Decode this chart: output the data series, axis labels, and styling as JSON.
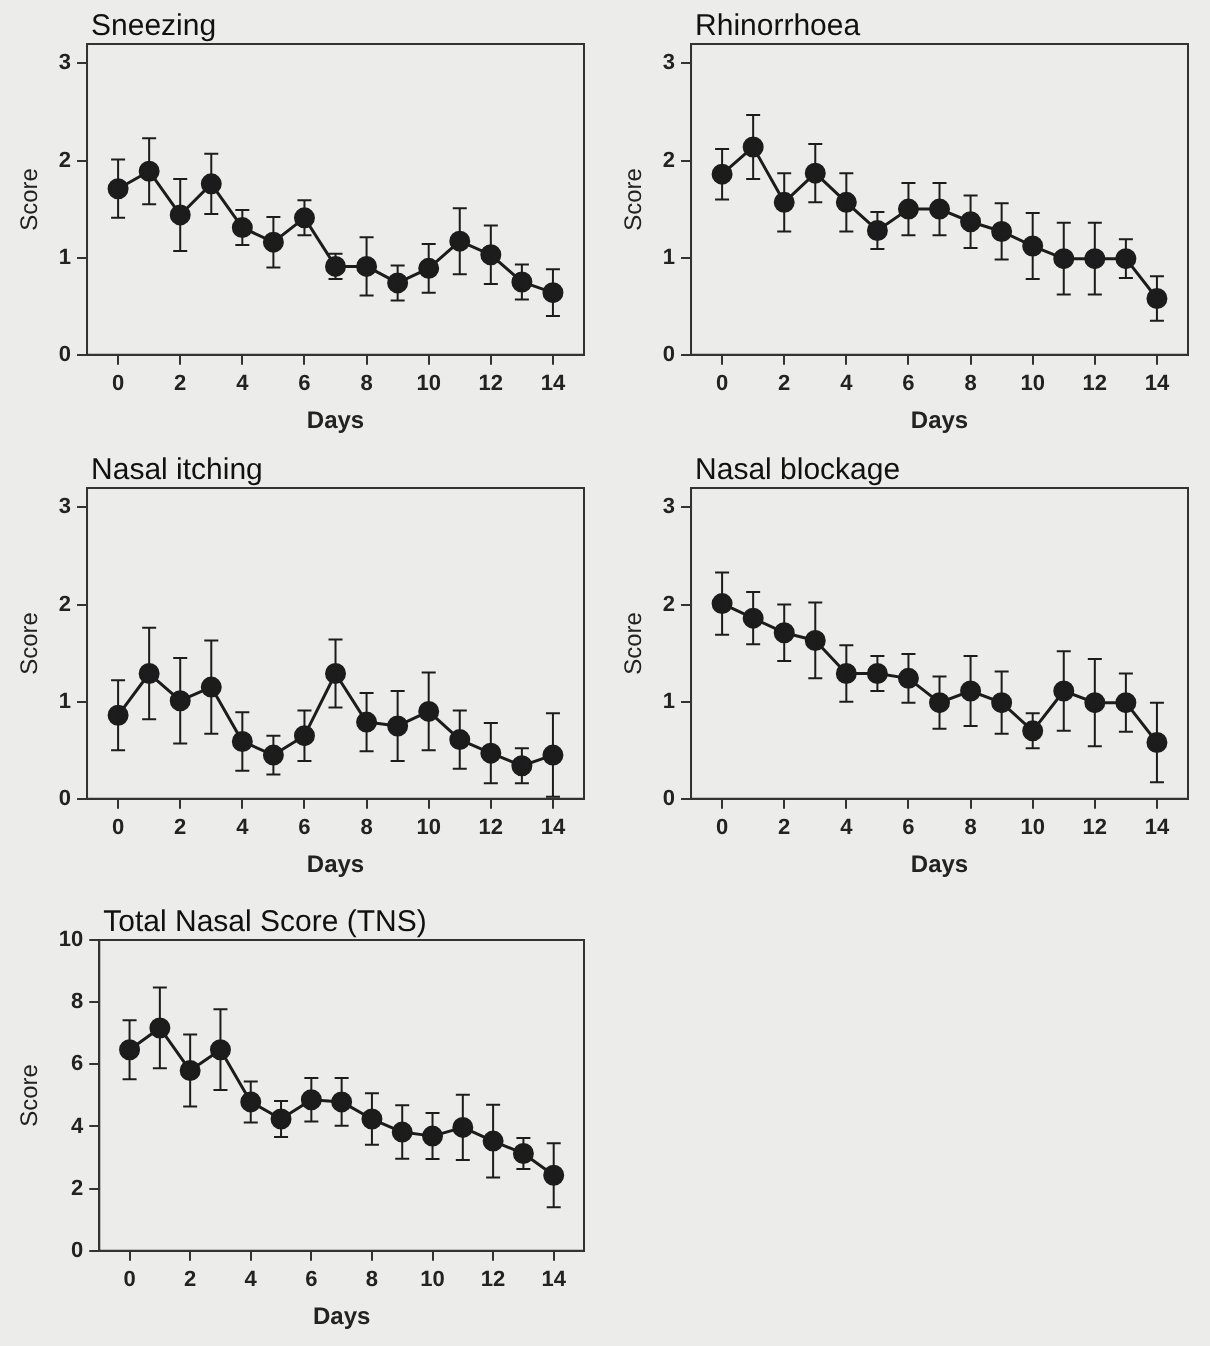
{
  "chart_data": [
    {
      "type": "line",
      "title": "Sneezing",
      "xlabel": "Days",
      "ylabel": "Score",
      "x": [
        0,
        1,
        2,
        3,
        4,
        5,
        6,
        7,
        8,
        9,
        10,
        11,
        12,
        13,
        14
      ],
      "xlim": [
        -1,
        15
      ],
      "xticks": [
        0,
        2,
        4,
        6,
        8,
        10,
        12,
        14
      ],
      "ylim": [
        0,
        3.2
      ],
      "yticks": [
        0,
        1,
        2,
        3
      ],
      "marker": "circle",
      "grid": false,
      "legend": false,
      "color": "#1c1c1c",
      "values": [
        1.71,
        1.89,
        1.44,
        1.76,
        1.31,
        1.16,
        1.41,
        0.91,
        0.91,
        0.74,
        0.89,
        1.17,
        1.03,
        0.75,
        0.64
      ],
      "errors": [
        0.3,
        0.34,
        0.37,
        0.31,
        0.18,
        0.26,
        0.18,
        0.13,
        0.3,
        0.18,
        0.25,
        0.34,
        0.3,
        0.18,
        0.24
      ]
    },
    {
      "type": "line",
      "title": "Rhinorrhoea",
      "xlabel": "Days",
      "ylabel": "Score",
      "x": [
        0,
        1,
        2,
        3,
        4,
        5,
        6,
        7,
        8,
        9,
        10,
        11,
        12,
        13,
        14
      ],
      "xlim": [
        -1,
        15
      ],
      "xticks": [
        0,
        2,
        4,
        6,
        8,
        10,
        12,
        14
      ],
      "ylim": [
        0,
        3.2
      ],
      "yticks": [
        0,
        1,
        2,
        3
      ],
      "marker": "circle",
      "grid": false,
      "legend": false,
      "color": "#1c1c1c",
      "values": [
        1.86,
        2.14,
        1.57,
        1.87,
        1.57,
        1.28,
        1.5,
        1.5,
        1.37,
        1.27,
        1.12,
        0.99,
        0.99,
        0.99,
        0.58
      ],
      "errors": [
        0.26,
        0.33,
        0.3,
        0.3,
        0.3,
        0.19,
        0.27,
        0.27,
        0.27,
        0.29,
        0.34,
        0.37,
        0.37,
        0.2,
        0.23
      ]
    },
    {
      "type": "line",
      "title": "Nasal itching",
      "xlabel": "Days",
      "ylabel": "Score",
      "x": [
        0,
        1,
        2,
        3,
        4,
        5,
        6,
        7,
        8,
        9,
        10,
        11,
        12,
        13,
        14
      ],
      "xlim": [
        -1,
        15
      ],
      "xticks": [
        0,
        2,
        4,
        6,
        8,
        10,
        12,
        14
      ],
      "ylim": [
        0,
        3.2
      ],
      "yticks": [
        0,
        1,
        2,
        3
      ],
      "marker": "circle",
      "grid": false,
      "legend": false,
      "color": "#1c1c1c",
      "values": [
        0.86,
        1.29,
        1.01,
        1.15,
        0.59,
        0.45,
        0.65,
        1.29,
        0.79,
        0.75,
        0.9,
        0.61,
        0.47,
        0.34,
        0.45
      ],
      "errors": [
        0.36,
        0.47,
        0.44,
        0.48,
        0.3,
        0.2,
        0.26,
        0.35,
        0.3,
        0.36,
        0.4,
        0.3,
        0.31,
        0.18,
        0.43
      ]
    },
    {
      "type": "line",
      "title": "Nasal blockage",
      "xlabel": "Days",
      "ylabel": "Score",
      "x": [
        0,
        1,
        2,
        3,
        4,
        5,
        6,
        7,
        8,
        9,
        10,
        11,
        12,
        13,
        14
      ],
      "xlim": [
        -1,
        15
      ],
      "xticks": [
        0,
        2,
        4,
        6,
        8,
        10,
        12,
        14
      ],
      "ylim": [
        0,
        3.2
      ],
      "yticks": [
        0,
        1,
        2,
        3
      ],
      "marker": "circle",
      "grid": false,
      "legend": false,
      "color": "#1c1c1c",
      "values": [
        2.01,
        1.86,
        1.71,
        1.63,
        1.29,
        1.29,
        1.24,
        0.99,
        1.11,
        0.99,
        0.7,
        1.11,
        0.99,
        0.99,
        0.58
      ],
      "errors": [
        0.32,
        0.27,
        0.29,
        0.39,
        0.29,
        0.18,
        0.25,
        0.27,
        0.36,
        0.32,
        0.18,
        0.41,
        0.45,
        0.3,
        0.41
      ]
    },
    {
      "type": "line",
      "title": "Total Nasal Score (TNS)",
      "xlabel": "Days",
      "ylabel": "Score",
      "x": [
        0,
        1,
        2,
        3,
        4,
        5,
        6,
        7,
        8,
        9,
        10,
        11,
        12,
        13,
        14
      ],
      "xlim": [
        -1,
        15
      ],
      "xticks": [
        0,
        2,
        4,
        6,
        8,
        10,
        12,
        14
      ],
      "ylim": [
        0,
        10
      ],
      "yticks": [
        0,
        2,
        4,
        6,
        8,
        10
      ],
      "marker": "circle",
      "grid": false,
      "legend": false,
      "color": "#1c1c1c",
      "values": [
        6.47,
        7.17,
        5.8,
        6.47,
        4.79,
        4.24,
        4.86,
        4.79,
        4.24,
        3.82,
        3.69,
        3.97,
        3.53,
        3.13,
        2.43
      ],
      "errors": [
        0.95,
        1.3,
        1.16,
        1.3,
        0.66,
        0.58,
        0.7,
        0.77,
        0.83,
        0.86,
        0.74,
        1.05,
        1.17,
        0.5,
        1.03
      ]
    }
  ]
}
